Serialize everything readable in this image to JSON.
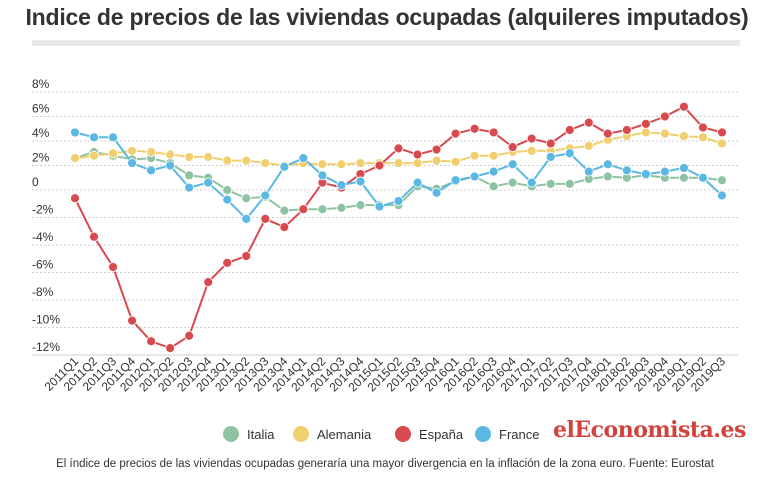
{
  "title": "Indice de precios de las viviendas ocupadas (alquileres imputados)",
  "footnote": "El índice de precios de las viviendas ocupadas generaría una mayor divergencia en la inflación de la zona euro. Fuente: Eurostat",
  "logo": "elEconomista.es",
  "chart_data": {
    "type": "line",
    "title": "Indice de precios de las viviendas ocupadas (alquileres imputados)",
    "xlabel": "",
    "ylabel": "",
    "ylim": [
      -12,
      8
    ],
    "y_ticks": [
      8,
      6,
      4,
      2,
      0,
      -2,
      -4,
      -6,
      -8,
      -10,
      -12
    ],
    "y_tick_labels": [
      "8%",
      "6%",
      "4%",
      "2%",
      "0",
      "-2%",
      "-4%",
      "-6%",
      "-8%",
      "-10%",
      "-12%"
    ],
    "grid": "horizontal dashed",
    "legend_position": "bottom",
    "categories": [
      "2011Q1",
      "2011Q2",
      "2011Q3",
      "2011Q4",
      "2012Q1",
      "2012Q2",
      "2012Q3",
      "2012Q4",
      "2013Q1",
      "2013Q2",
      "2013Q3",
      "2013Q4",
      "2014Q1",
      "2014Q2",
      "2014Q3",
      "2014Q4",
      "2015Q1",
      "2015Q2",
      "2015Q3",
      "2015Q4",
      "2016Q1",
      "2016Q2",
      "2016Q3",
      "2016Q4",
      "2017Q1",
      "2017Q2",
      "2017Q3",
      "2017Q4",
      "2018Q1",
      "2018Q2",
      "2018Q3",
      "2018Q4",
      "2019Q1",
      "2019Q2",
      "2019Q3"
    ],
    "series": [
      {
        "name": "Italia",
        "color": "#8dc3a2",
        "values": [
          2.6,
          3.1,
          2.8,
          2.5,
          2.6,
          2.2,
          1.2,
          1.0,
          0.0,
          -0.6,
          -0.5,
          -1.5,
          -1.4,
          -1.4,
          -1.3,
          -1.1,
          -1.1,
          -1.1,
          0.3,
          0.1,
          0.7,
          1.1,
          0.3,
          0.6,
          0.3,
          0.5,
          0.5,
          0.9,
          1.1,
          1.0,
          1.2,
          1.0,
          1.0,
          1.0,
          0.8
        ]
      },
      {
        "name": "Alemania",
        "color": "#f1cf6f",
        "values": [
          2.6,
          2.8,
          3.0,
          3.2,
          3.1,
          2.9,
          2.7,
          2.7,
          2.4,
          2.4,
          2.2,
          2.0,
          2.2,
          2.1,
          2.1,
          2.2,
          2.2,
          2.2,
          2.2,
          2.4,
          2.3,
          2.8,
          2.8,
          3.1,
          3.2,
          3.2,
          3.4,
          3.6,
          4.1,
          4.4,
          4.7,
          4.6,
          4.4,
          4.3,
          3.8
        ]
      },
      {
        "name": "España",
        "color": "#d84a4e",
        "values": [
          -0.6,
          -3.4,
          -5.6,
          -9.5,
          -11.0,
          -11.5,
          -10.6,
          -6.7,
          -5.3,
          -4.8,
          -2.1,
          -2.7,
          -1.4,
          0.6,
          0.2,
          1.3,
          2.0,
          3.4,
          2.9,
          3.3,
          4.6,
          5.0,
          4.7,
          3.5,
          4.2,
          3.8,
          4.9,
          5.5,
          4.6,
          4.9,
          5.4,
          6.0,
          6.8,
          5.1,
          4.7
        ]
      },
      {
        "name": "France",
        "color": "#5bb8e2",
        "values": [
          4.7,
          4.3,
          4.3,
          2.2,
          1.6,
          2.0,
          0.2,
          0.6,
          -0.7,
          -2.1,
          -0.4,
          1.9,
          2.6,
          1.2,
          0.4,
          0.7,
          -1.2,
          -0.8,
          0.6,
          -0.2,
          0.8,
          1.1,
          1.5,
          2.1,
          0.6,
          2.7,
          3.0,
          1.5,
          2.1,
          1.6,
          1.3,
          1.5,
          1.8,
          1.0,
          -0.4
        ]
      }
    ]
  }
}
